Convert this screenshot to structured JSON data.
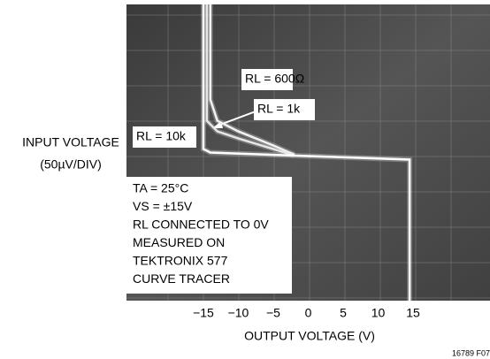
{
  "chart_data": {
    "type": "line",
    "xlabel": "OUTPUT VOLTAGE (V)",
    "ylabel": [
      "INPUT VOLTAGE",
      "(50µV/DIV)"
    ],
    "xlim": [
      -26,
      26
    ],
    "ylim": [
      -205,
      215
    ],
    "xticks": [
      {
        "value": -15,
        "label": "−15"
      },
      {
        "value": -10,
        "label": "−10"
      },
      {
        "value": -5,
        "label": "−5"
      },
      0,
      5,
      10,
      15
    ],
    "series": [
      {
        "name": "RL = 600Ω",
        "color": "#f2f2f2",
        "x": [
          -14,
          -14,
          -13,
          -10,
          -5,
          -2
        ],
        "values": [
          215,
          80,
          50,
          35,
          15,
          2
        ]
      },
      {
        "name": "RL = 1k",
        "color": "#e6e6e6",
        "x": [
          -14.5,
          -14.5,
          -13,
          -10,
          -5,
          -2
        ],
        "values": [
          215,
          50,
          35,
          25,
          10,
          1
        ]
      },
      {
        "name": "RL = 10k",
        "color": "#ffffff",
        "x": [
          -15,
          -15,
          -14,
          0,
          14.5,
          14.5,
          14.5
        ],
        "values": [
          215,
          10,
          5,
          0,
          -5,
          -10,
          -205
        ]
      }
    ],
    "annotations": [
      "TA = 25°C",
      "VS = ±15V",
      "RL CONNECTED TO 0V",
      "MEASURED ON",
      "TEKTRONIX 577",
      "CURVE TRACER"
    ],
    "footnote": "16789 F07"
  }
}
